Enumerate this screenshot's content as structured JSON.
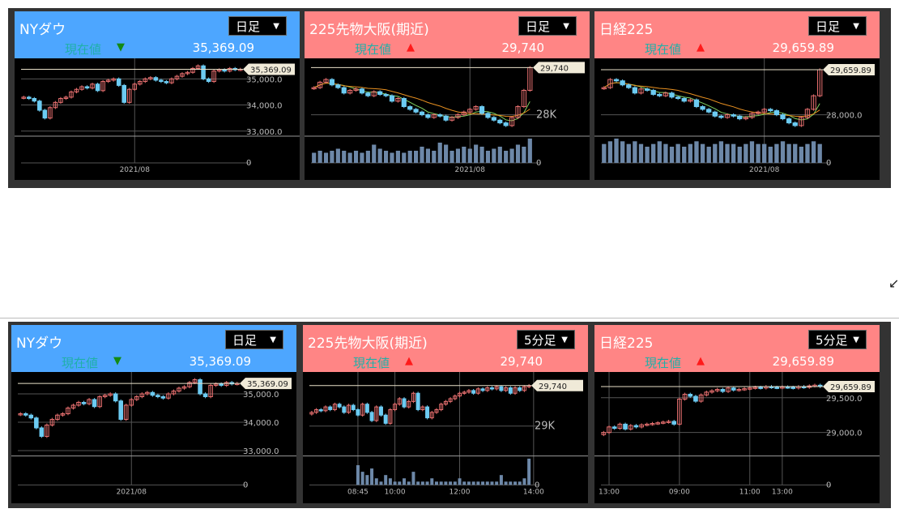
{
  "colors": {
    "blue_header": "#4da6ff",
    "red_header": "#ff8585",
    "up": "#e87070",
    "down": "#6ccbf2",
    "price_line": "#e8e0c8",
    "label": "#1fb0a8"
  },
  "corner_icon": "resize-arrow-icon",
  "corner_glyph": "↙",
  "boards": [
    {
      "panels": [
        {
          "title": "NYダウ",
          "interval": "日足",
          "current_label": "現在値",
          "direction": "down",
          "current": "35,369.09",
          "header": "blue"
        },
        {
          "title": "225先物大阪(期近)",
          "interval": "日足",
          "current_label": "現在値",
          "direction": "up",
          "current": "29,740",
          "header": "red"
        },
        {
          "title": "日経225",
          "interval": "日足",
          "current_label": "現在値",
          "direction": "up",
          "current": "29,659.89",
          "header": "red"
        }
      ]
    },
    {
      "panels": [
        {
          "title": "NYダウ",
          "interval": "日足",
          "current_label": "現在値",
          "direction": "down",
          "current": "35,369.09",
          "header": "blue"
        },
        {
          "title": "225先物大阪(期近)",
          "interval": "5分足",
          "current_label": "現在値",
          "direction": "up",
          "current": "29,740",
          "header": "red"
        },
        {
          "title": "日経225",
          "interval": "5分足",
          "current_label": "現在値",
          "direction": "up",
          "current": "29,659.89",
          "header": "red"
        }
      ]
    }
  ],
  "chart_data": [
    {
      "type": "candlestick",
      "ylim": [
        32900,
        35600
      ],
      "yticks": [
        {
          "v": 35000,
          "l": "35,000.0"
        },
        {
          "v": 34000,
          "l": "34,000.0"
        },
        {
          "v": 33000,
          "l": "33,000.0"
        }
      ],
      "price_tag": "35,369.09",
      "current": 35369,
      "volume_zero": "0",
      "xticks": [
        {
          "i": 21,
          "l": "2021/08"
        }
      ],
      "closes": [
        34300,
        34250,
        34150,
        33800,
        33500,
        33900,
        34100,
        34250,
        34300,
        34500,
        34600,
        34700,
        34650,
        34800,
        34550,
        34900,
        34950,
        35000,
        34750,
        34100,
        34600,
        34800,
        34900,
        35000,
        35050,
        34950,
        34900,
        34850,
        35000,
        35100,
        35200,
        35250,
        35400,
        35500,
        35000,
        34900,
        35300,
        35350,
        35300,
        35400,
        35350,
        35369
      ]
    },
    {
      "type": "candlestick",
      "ylim": [
        27300,
        29900
      ],
      "yticks": [
        {
          "v": 28000,
          "l": "28K"
        }
      ],
      "price_tag": "29,740",
      "current": 29740,
      "volume_zero": "0",
      "ma": true,
      "xticks": [
        {
          "i": 26,
          "l": "2021/08"
        }
      ],
      "closes": [
        29000,
        29200,
        29300,
        29100,
        29000,
        28800,
        28900,
        28950,
        28800,
        28700,
        28850,
        28750,
        28700,
        28500,
        28600,
        28300,
        28200,
        28100,
        28000,
        27900,
        28000,
        27950,
        27800,
        27900,
        28000,
        28100,
        28200,
        28300,
        28050,
        27900,
        27800,
        27700,
        27600,
        27900,
        28300,
        28900,
        29740
      ],
      "volume": [
        5,
        6,
        5,
        6,
        7,
        6,
        5,
        6,
        5,
        6,
        9,
        7,
        6,
        5,
        6,
        5,
        6,
        6,
        8,
        7,
        6,
        10,
        9,
        6,
        7,
        8,
        7,
        9,
        8,
        6,
        7,
        8,
        6,
        7,
        9,
        8,
        12
      ]
    },
    {
      "type": "candlestick",
      "ylim": [
        27300,
        29900
      ],
      "yticks": [
        {
          "v": 28000,
          "l": "28,000.0"
        }
      ],
      "price_tag": "29,659.89",
      "current": 29660,
      "volume_zero": "0",
      "ma": true,
      "xticks": [
        {
          "i": 26,
          "l": "2021/08"
        }
      ],
      "closes": [
        29000,
        29300,
        29250,
        29100,
        29000,
        28800,
        28950,
        28900,
        28750,
        28700,
        28800,
        28650,
        28600,
        28500,
        28550,
        28300,
        28200,
        28100,
        27950,
        27900,
        28000,
        27950,
        27850,
        27900,
        28050,
        28100,
        28200,
        28150,
        28000,
        27850,
        27700,
        27600,
        27900,
        28200,
        28700,
        29660
      ],
      "volume": [
        7,
        8,
        9,
        8,
        7,
        8,
        7,
        6,
        7,
        8,
        7,
        6,
        7,
        6,
        7,
        8,
        7,
        6,
        7,
        8,
        7,
        7,
        6,
        7,
        8,
        7,
        7,
        6,
        7,
        8,
        7,
        7,
        6,
        7,
        8,
        7
      ]
    },
    {
      "type": "candlestick",
      "ylim": [
        32900,
        35600
      ],
      "yticks": [
        {
          "v": 35000,
          "l": "35,000.0"
        },
        {
          "v": 34000,
          "l": "34,000.0"
        },
        {
          "v": 33000,
          "l": "33,000.0"
        }
      ],
      "price_tag": "35,369.09",
      "current": 35369,
      "volume_zero": "0",
      "xticks": [
        {
          "i": 21,
          "l": "2021/08"
        }
      ],
      "closes": [
        34300,
        34250,
        34150,
        33800,
        33500,
        33900,
        34100,
        34250,
        34300,
        34500,
        34600,
        34700,
        34650,
        34800,
        34550,
        34900,
        34950,
        35000,
        34750,
        34100,
        34600,
        34800,
        34900,
        35000,
        35050,
        34950,
        34900,
        34850,
        35000,
        35100,
        35200,
        35250,
        35400,
        35500,
        35000,
        34900,
        35300,
        35350,
        35300,
        35400,
        35350,
        35369
      ]
    },
    {
      "type": "candlestick",
      "ylim": [
        28500,
        29900
      ],
      "yticks": [
        {
          "v": 29000,
          "l": "29K"
        }
      ],
      "price_tag": "29,740",
      "current": 29740,
      "volume_zero": "0",
      "xticks": [
        {
          "i": 10,
          "l": "08:45"
        },
        {
          "i": 18,
          "l": "10:00"
        },
        {
          "i": 32,
          "l": "12:00"
        },
        {
          "i": 48,
          "l": "14:00"
        }
      ],
      "closes": [
        29250,
        29300,
        29280,
        29350,
        29300,
        29400,
        29350,
        29250,
        29380,
        29300,
        29200,
        29400,
        29250,
        29100,
        29350,
        29200,
        29050,
        29300,
        29400,
        29500,
        29350,
        29450,
        29600,
        29300,
        29350,
        29150,
        29250,
        29300,
        29400,
        29450,
        29500,
        29550,
        29600,
        29620,
        29650,
        29600,
        29680,
        29650,
        29700,
        29680,
        29720,
        29650,
        29700,
        29600,
        29700,
        29650,
        29720,
        29740
      ],
      "volume": [
        0,
        0,
        0,
        0,
        0,
        0,
        0,
        0,
        0,
        0,
        6,
        4,
        3,
        5,
        2,
        1,
        3,
        2,
        1,
        1,
        2,
        1,
        4,
        1,
        1,
        1,
        2,
        1,
        1,
        1,
        1,
        1,
        2,
        1,
        1,
        1,
        1,
        1,
        1,
        1,
        1,
        3,
        1,
        1,
        1,
        1,
        2,
        8
      ]
    },
    {
      "type": "candlestick",
      "ylim": [
        28700,
        29800
      ],
      "yticks": [
        {
          "v": 29500,
          "l": "29,500.0"
        },
        {
          "v": 29000,
          "l": "29,000.0"
        }
      ],
      "price_tag": "29,659.89",
      "current": 29660,
      "volume_zero": "0",
      "xticks": [
        {
          "i": 1,
          "l": "13:00"
        },
        {
          "i": 14,
          "l": "09:00"
        },
        {
          "i": 27,
          "l": "11:00"
        },
        {
          "i": 33,
          "l": "13:00"
        }
      ],
      "closes": [
        29000,
        29080,
        29060,
        29120,
        29050,
        29100,
        29080,
        29110,
        29120,
        29130,
        29140,
        29150,
        29160,
        29120,
        29480,
        29550,
        29520,
        29450,
        29540,
        29580,
        29600,
        29620,
        29590,
        29640,
        29610,
        29620,
        29630,
        29640,
        29650,
        29640,
        29660,
        29650,
        29645,
        29655,
        29650,
        29640,
        29660,
        29650,
        29670,
        29680,
        29660
      ]
    }
  ]
}
